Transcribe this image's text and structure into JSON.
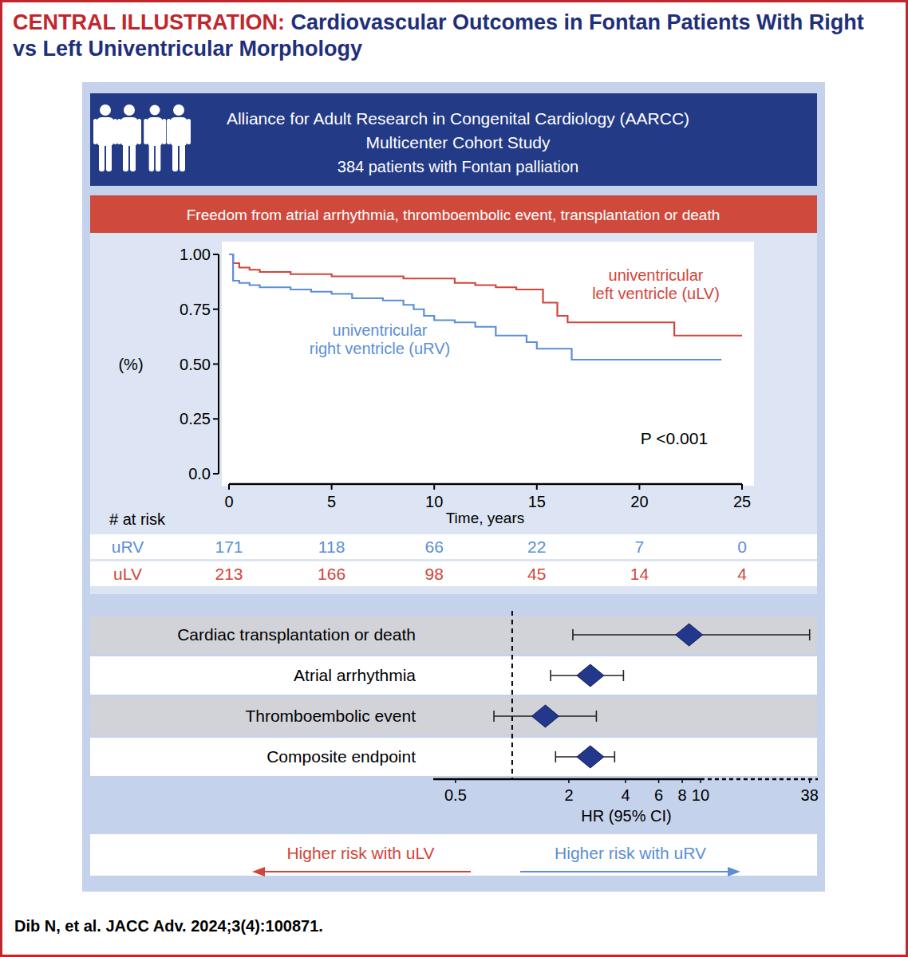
{
  "header": {
    "label": "CENTRAL ILLUSTRATION:",
    "title": "Cardiovascular Outcomes in Fontan Patients With Right vs Left Univentricular Morphology"
  },
  "study": {
    "lines": [
      "Alliance for Adult Research in Congenital Cardiology (AARCC)",
      "Multicenter Cohort Study",
      "384 patients with Fontan palliation"
    ]
  },
  "citation": "Dib N, et al. JACC Adv. 2024;3(4):100871.",
  "chart_data": [
    {
      "type": "line",
      "title": "Freedom from atrial arrhythmia, thromboembolic event, transplantation or death",
      "x": [
        0,
        0.2,
        0.5,
        1,
        1.5,
        2,
        3,
        4,
        5,
        6,
        7,
        7.5,
        8.5,
        9,
        9.5,
        10,
        11,
        12,
        13,
        14,
        14.5,
        15,
        15.3,
        16,
        16.5,
        16.7,
        17,
        20,
        21.7,
        24,
        25
      ],
      "series": [
        {
          "name": "univentricular left ventricle (uLV)",
          "color": "#d2453a",
          "line_style": "step",
          "values": [
            1.0,
            0.96,
            0.94,
            0.93,
            0.92,
            0.92,
            0.91,
            0.91,
            0.9,
            0.9,
            0.9,
            0.9,
            0.89,
            0.89,
            0.89,
            0.89,
            0.87,
            0.86,
            0.85,
            0.84,
            0.84,
            0.84,
            0.78,
            0.72,
            0.69,
            0.69,
            0.69,
            0.69,
            0.63,
            0.63,
            0.63
          ]
        },
        {
          "name": "univentricular right ventricle (uRV)",
          "color": "#5b8fd6",
          "line_style": "step",
          "values": [
            1.0,
            0.88,
            0.87,
            0.86,
            0.85,
            0.85,
            0.84,
            0.83,
            0.82,
            0.8,
            0.8,
            0.79,
            0.77,
            0.75,
            0.72,
            0.7,
            0.69,
            0.67,
            0.63,
            0.63,
            0.6,
            0.57,
            0.57,
            0.57,
            0.57,
            0.52,
            0.52,
            0.52,
            0.52,
            0.52,
            null
          ]
        }
      ],
      "xlim": [
        0,
        25
      ],
      "xticks": [
        0,
        5,
        10,
        15,
        20,
        25
      ],
      "ylim": [
        0,
        1
      ],
      "yticks": [
        {
          "value": 0,
          "label": "0.0"
        },
        0.25,
        {
          "value": 0.5,
          "label": "0.50"
        },
        {
          "value": 0.75,
          "label": "0.75"
        },
        {
          "value": 1,
          "label": "1.00"
        }
      ],
      "xlabel": "Time, years",
      "ylabel": "(%)",
      "annotation": "P <0.001",
      "grid": false,
      "at_risk": {
        "label": "# at risk",
        "rows": [
          {
            "name": "uRV",
            "color": "#5b8fd6",
            "values": [
              171,
              118,
              66,
              22,
              7,
              0
            ]
          },
          {
            "name": "uLV",
            "color": "#d2453a",
            "values": [
              213,
              166,
              98,
              45,
              14,
              4
            ]
          }
        ]
      }
    },
    {
      "type": "forest",
      "orientation": "horizontal",
      "log": "x",
      "categories": [
        "Cardiac transplantation or death",
        "Atrial arrhythmia",
        "Thromboembolic event",
        "Composite endpoint"
      ],
      "values": [
        8.7,
        2.6,
        1.5,
        2.6
      ],
      "ci_low": [
        2.1,
        1.6,
        0.8,
        1.7
      ],
      "ci_high": [
        38,
        3.9,
        2.8,
        3.5
      ],
      "color": "#23388c",
      "reference_line": 1,
      "xlim": [
        0.4,
        40
      ],
      "xticks": [
        0.5,
        2,
        4,
        6,
        8,
        10,
        38
      ],
      "xlabel": "HR (95% CI)",
      "annotations": [
        "Higher risk with uLV",
        "Higher risk with uRV"
      ]
    }
  ]
}
